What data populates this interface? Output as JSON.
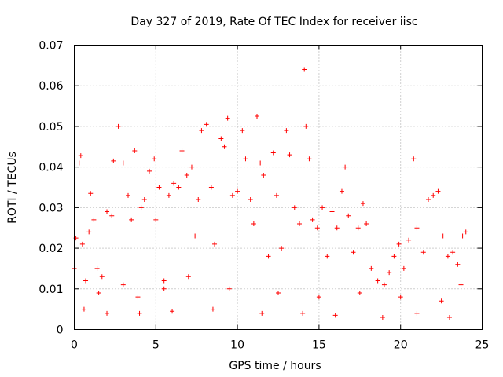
{
  "chart_data": {
    "type": "scatter",
    "title": "Day 327 of 2019, Rate Of TEC Index for receiver iisc",
    "xlabel": "GPS time / hours",
    "ylabel": "ROTI / TECUs",
    "xlim": [
      0,
      25
    ],
    "ylim": [
      0,
      0.07
    ],
    "xticks": [
      0,
      5,
      10,
      15,
      20,
      25
    ],
    "yticks": [
      0,
      0.01,
      0.02,
      0.03,
      0.04,
      0.05,
      0.06,
      0.07
    ],
    "xtick_labels": [
      "0",
      "5",
      "10",
      "15",
      "20",
      "25"
    ],
    "ytick_labels": [
      "0",
      "0.01",
      "0.02",
      "0.03",
      "0.04",
      "0.05",
      "0.06",
      "0.07"
    ],
    "grid": true,
    "marker": "plus",
    "color": "#ff0000",
    "series": [
      {
        "name": "ROTI",
        "points": [
          [
            0.0,
            0.015
          ],
          [
            0.1,
            0.0225
          ],
          [
            0.3,
            0.041
          ],
          [
            0.4,
            0.0428
          ],
          [
            0.5,
            0.021
          ],
          [
            0.7,
            0.012
          ],
          [
            0.9,
            0.024
          ],
          [
            1.0,
            0.0335
          ],
          [
            1.2,
            0.027
          ],
          [
            1.4,
            0.015
          ],
          [
            1.7,
            0.013
          ],
          [
            2.0,
            0.029
          ],
          [
            2.3,
            0.028
          ],
          [
            2.4,
            0.0415
          ],
          [
            2.7,
            0.05
          ],
          [
            3.0,
            0.041
          ],
          [
            3.3,
            0.033
          ],
          [
            3.5,
            0.027
          ],
          [
            3.7,
            0.044
          ],
          [
            3.9,
            0.008
          ],
          [
            4.1,
            0.03
          ],
          [
            4.3,
            0.032
          ],
          [
            4.6,
            0.039
          ],
          [
            4.9,
            0.042
          ],
          [
            5.0,
            0.027
          ],
          [
            5.2,
            0.035
          ],
          [
            5.5,
            0.01
          ],
          [
            5.8,
            0.033
          ],
          [
            6.1,
            0.036
          ],
          [
            6.4,
            0.035
          ],
          [
            6.6,
            0.044
          ],
          [
            6.9,
            0.038
          ],
          [
            7.2,
            0.04
          ],
          [
            7.4,
            0.023
          ],
          [
            7.6,
            0.032
          ],
          [
            7.8,
            0.049
          ],
          [
            8.1,
            0.0505
          ],
          [
            8.4,
            0.035
          ],
          [
            8.6,
            0.021
          ],
          [
            9.0,
            0.047
          ],
          [
            9.2,
            0.045
          ],
          [
            9.4,
            0.052
          ],
          [
            9.7,
            0.033
          ],
          [
            10.0,
            0.034
          ],
          [
            10.3,
            0.049
          ],
          [
            10.5,
            0.042
          ],
          [
            10.8,
            0.032
          ],
          [
            11.0,
            0.026
          ],
          [
            11.2,
            0.0525
          ],
          [
            11.4,
            0.041
          ],
          [
            11.6,
            0.038
          ],
          [
            11.9,
            0.018
          ],
          [
            12.2,
            0.0435
          ],
          [
            12.4,
            0.033
          ],
          [
            12.7,
            0.02
          ],
          [
            13.0,
            0.049
          ],
          [
            13.2,
            0.043
          ],
          [
            13.5,
            0.03
          ],
          [
            13.8,
            0.026
          ],
          [
            14.1,
            0.064
          ],
          [
            14.2,
            0.05
          ],
          [
            14.4,
            0.042
          ],
          [
            14.6,
            0.027
          ],
          [
            14.9,
            0.025
          ],
          [
            15.2,
            0.03
          ],
          [
            15.5,
            0.018
          ],
          [
            15.8,
            0.029
          ],
          [
            16.1,
            0.025
          ],
          [
            16.4,
            0.034
          ],
          [
            16.6,
            0.04
          ],
          [
            16.8,
            0.028
          ],
          [
            17.1,
            0.019
          ],
          [
            17.4,
            0.025
          ],
          [
            17.7,
            0.031
          ],
          [
            17.9,
            0.026
          ],
          [
            18.2,
            0.015
          ],
          [
            18.6,
            0.012
          ],
          [
            19.0,
            0.011
          ],
          [
            19.3,
            0.014
          ],
          [
            19.6,
            0.018
          ],
          [
            19.9,
            0.021
          ],
          [
            20.2,
            0.015
          ],
          [
            20.5,
            0.022
          ],
          [
            20.8,
            0.042
          ],
          [
            21.0,
            0.025
          ],
          [
            21.4,
            0.019
          ],
          [
            21.7,
            0.032
          ],
          [
            22.0,
            0.033
          ],
          [
            22.3,
            0.034
          ],
          [
            22.6,
            0.023
          ],
          [
            22.9,
            0.018
          ],
          [
            23.2,
            0.019
          ],
          [
            23.5,
            0.016
          ],
          [
            23.8,
            0.023
          ],
          [
            24.0,
            0.024
          ],
          [
            0.6,
            0.005
          ],
          [
            2.0,
            0.004
          ],
          [
            4.0,
            0.004
          ],
          [
            6.0,
            0.0045
          ],
          [
            8.5,
            0.005
          ],
          [
            11.5,
            0.004
          ],
          [
            14.0,
            0.004
          ],
          [
            16.0,
            0.0035
          ],
          [
            18.9,
            0.003
          ],
          [
            21.0,
            0.004
          ],
          [
            23.0,
            0.003
          ],
          [
            1.5,
            0.009
          ],
          [
            3.0,
            0.011
          ],
          [
            5.5,
            0.012
          ],
          [
            7.0,
            0.013
          ],
          [
            9.5,
            0.01
          ],
          [
            12.5,
            0.009
          ],
          [
            15.0,
            0.008
          ],
          [
            17.5,
            0.009
          ],
          [
            20.0,
            0.008
          ],
          [
            22.5,
            0.007
          ],
          [
            23.7,
            0.011
          ]
        ]
      }
    ]
  }
}
